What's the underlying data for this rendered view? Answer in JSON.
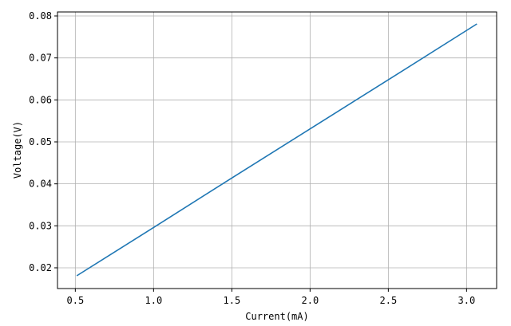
{
  "chart_data": {
    "type": "line",
    "title": "",
    "xlabel": "Current(mA)",
    "ylabel": "Voltage(V)",
    "xlim": [
      0.386,
      3.192
    ],
    "ylim": [
      0.01506,
      0.08095
    ],
    "xticks": [
      0.5,
      1.0,
      1.5,
      2.0,
      2.5,
      3.0
    ],
    "xtick_labels": [
      "0.5",
      "1.0",
      "1.5",
      "2.0",
      "2.5",
      "3.0"
    ],
    "yticks": [
      0.02,
      0.03,
      0.04,
      0.05,
      0.06,
      0.07,
      0.08
    ],
    "ytick_labels": [
      "0.02",
      "0.03",
      "0.04",
      "0.05",
      "0.06",
      "0.07",
      "0.08"
    ],
    "grid": true,
    "series": [
      {
        "color": "#1f77b4",
        "x": [
          0.509,
          1.0,
          1.5,
          2.0,
          2.5,
          3.066
        ],
        "y": [
          0.0181,
          0.0296,
          0.0414,
          0.0531,
          0.0648,
          0.0781
        ]
      }
    ]
  }
}
